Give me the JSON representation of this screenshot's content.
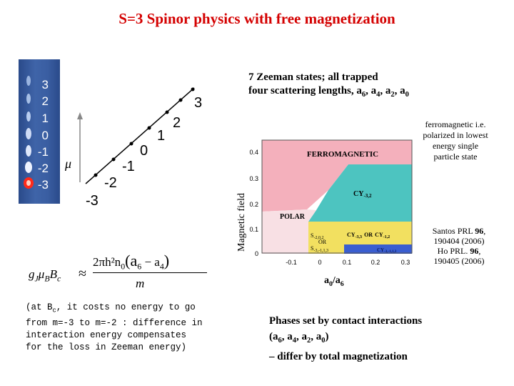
{
  "title": "S=3 Spinor physics with free magnetization",
  "m_levels": [
    "3",
    "2",
    "1",
    "0",
    "-1",
    "-2",
    "-3"
  ],
  "mu_label": "μ",
  "zeeman": {
    "line1": "7 Zeeman states; all trapped",
    "line2_prefix": "four scattering lengths, a",
    "s6": "6",
    "s4": "4",
    "s2": "2",
    "s0": "0"
  },
  "ferromagnetic_note": "ferromagnetic i.e. polarized in lowest energy single particle state",
  "phase_diagram": {
    "ylabel": "Magnetic field",
    "xlabel_a": "a",
    "xlabel_sub0": "0",
    "xlabel_slash": "/a",
    "xlabel_sub6": "6",
    "y_ticks": [
      "0.4",
      "0.3",
      "0.2",
      "0.1",
      "0"
    ],
    "x_ticks": [
      "-0.1",
      "0",
      "0.1",
      "0.2",
      "0.3"
    ],
    "regions": {
      "ferro": "FERROMAGNETIC",
      "cy32": "CY",
      "cy32_sub": "-3,2",
      "polar": "POLAR",
      "s_top": "S",
      "s_top_sub": "-2,0,2",
      "or": "OR",
      "s_bot": "S",
      "s_bot_sub": "-3,-1,1,3",
      "cy33": "CY",
      "cy33_sub": "-3,3",
      "or2": "OR",
      "cy12": "CY",
      "cy12_sub": "-1,2",
      "cy313": "CY",
      "cy313_sub": "-3,-1,1,3"
    },
    "colors": {
      "ferro": "#f4b0bc",
      "cy": "#4dc4c0",
      "polar": "#f8e0e4",
      "s": "#f2e060",
      "cyblue": "#3a5ed0"
    }
  },
  "references": {
    "l1": "Santos PRL ",
    "l1b": "96",
    "l2": "190404 (2006)",
    "l3": "Ho PRL. ",
    "l3b": "96",
    "l4": "190405 (2006)"
  },
  "formula": {
    "lhs_g": "g",
    "lhs_sub": "J",
    "lhs_mu": "μ",
    "lhs_sub2": "B",
    "lhs_B": "B",
    "lhs_subc": "c",
    "approx": "≈",
    "num": "2πh²n",
    "num_sub": "0",
    "paren": "(a",
    "a6": "6",
    "minus": " − a",
    "a4": "4",
    "close": ")",
    "den": "m"
  },
  "note": {
    "p1": "(at B",
    "p1sub": "c",
    "p2": ", it costs no energy to go from m=-3 to m=-2 : difference in interaction energy compensates for the loss in Zeeman energy)"
  },
  "summary": {
    "l1": "Phases set by contact interactions",
    "l2a": "(a",
    "s6": "6",
    "c1": ", a",
    "s4": "4",
    "c2": ", a",
    "s2": "2",
    "c3": ", a",
    "s0": "0",
    "l2b": ")",
    "l3": "– differ by total magnetization"
  }
}
